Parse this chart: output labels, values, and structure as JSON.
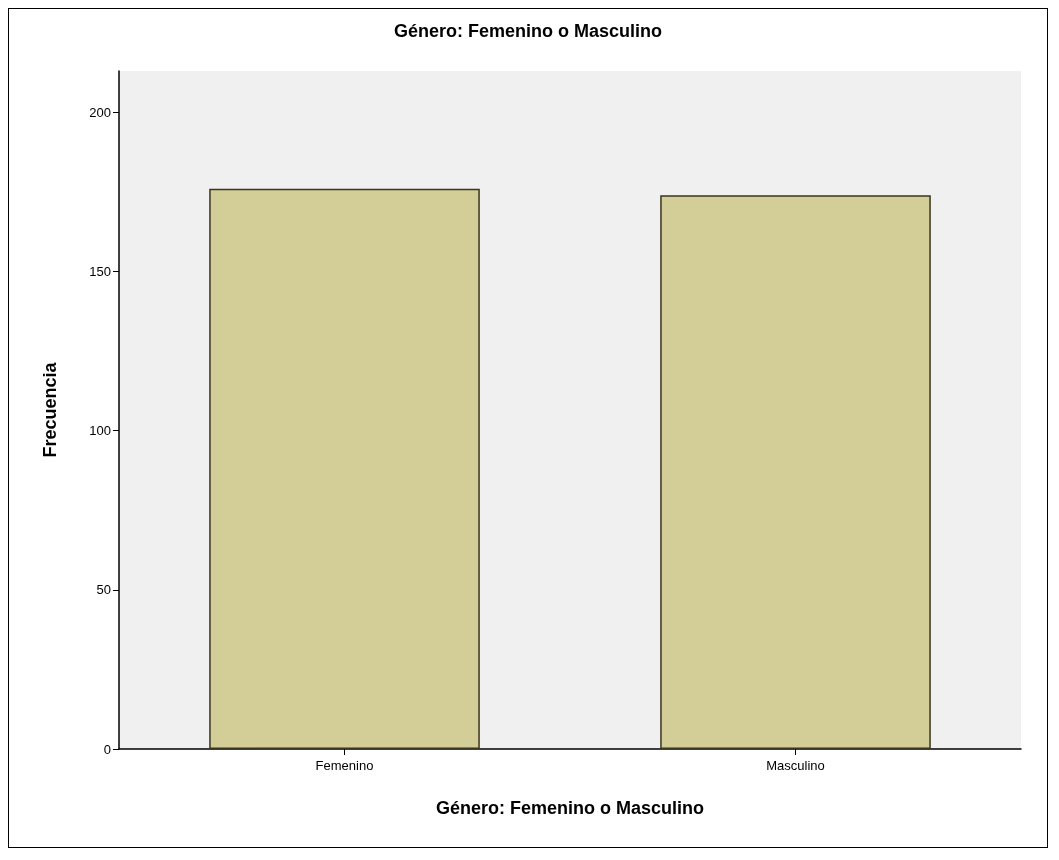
{
  "chart_data": {
    "type": "bar",
    "title": "Género: Femenino o Masculino",
    "xlabel": "Género: Femenino o Masculino",
    "ylabel": "Frecuencia",
    "categories": [
      "Femenino",
      "Masculino"
    ],
    "values": [
      176,
      174
    ],
    "color": "#d3ce97",
    "ylim": [
      0,
      213
    ],
    "yticks": [
      0,
      50,
      100,
      150,
      200
    ],
    "grid": false
  }
}
